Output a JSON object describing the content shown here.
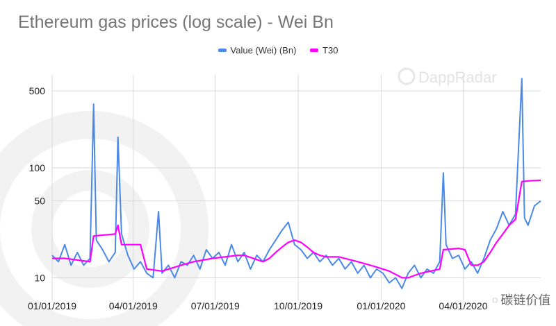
{
  "chart_data": {
    "type": "line",
    "title": "Ethereum gas prices (log scale) - Wei Bn",
    "xlabel": "",
    "ylabel": "",
    "y_scale": "log",
    "ylim": [
      7,
      700
    ],
    "xlim": [
      "2019-01-01",
      "2020-06-26"
    ],
    "yticks": [
      10,
      50,
      100,
      500
    ],
    "xticks": [
      "01/01/2019",
      "04/01/2019",
      "07/01/2019",
      "10/01/2019",
      "01/01/2020",
      "04/01/2020"
    ],
    "xtick_dates": [
      "2019-01-01",
      "2019-04-01",
      "2019-07-01",
      "2019-10-01",
      "2020-01-01",
      "2020-04-01"
    ],
    "grid": true,
    "legend_position": "top",
    "series": [
      {
        "name": "Value (Wei) (Bn)",
        "color": "#4a89e6",
        "data": [
          [
            "2019-01-01",
            16
          ],
          [
            "2019-01-08",
            14
          ],
          [
            "2019-01-15",
            20
          ],
          [
            "2019-01-22",
            13
          ],
          [
            "2019-01-29",
            17
          ],
          [
            "2019-02-05",
            13
          ],
          [
            "2019-02-12",
            15
          ],
          [
            "2019-02-16",
            380
          ],
          [
            "2019-02-19",
            22
          ],
          [
            "2019-02-26",
            18
          ],
          [
            "2019-03-05",
            14
          ],
          [
            "2019-03-12",
            17
          ],
          [
            "2019-03-15",
            190
          ],
          [
            "2019-03-19",
            25
          ],
          [
            "2019-03-26",
            16
          ],
          [
            "2019-04-02",
            12
          ],
          [
            "2019-04-09",
            14
          ],
          [
            "2019-04-16",
            11
          ],
          [
            "2019-04-23",
            10
          ],
          [
            "2019-04-29",
            40
          ],
          [
            "2019-05-03",
            11
          ],
          [
            "2019-05-10",
            13
          ],
          [
            "2019-05-17",
            10
          ],
          [
            "2019-05-24",
            14
          ],
          [
            "2019-05-31",
            13
          ],
          [
            "2019-06-07",
            16
          ],
          [
            "2019-06-14",
            12
          ],
          [
            "2019-06-21",
            18
          ],
          [
            "2019-06-28",
            15
          ],
          [
            "2019-07-05",
            17
          ],
          [
            "2019-07-12",
            13
          ],
          [
            "2019-07-19",
            20
          ],
          [
            "2019-07-26",
            14
          ],
          [
            "2019-08-02",
            17
          ],
          [
            "2019-08-09",
            12
          ],
          [
            "2019-08-16",
            16
          ],
          [
            "2019-08-23",
            14
          ],
          [
            "2019-08-30",
            18
          ],
          [
            "2019-09-06",
            22
          ],
          [
            "2019-09-13",
            27
          ],
          [
            "2019-09-20",
            32
          ],
          [
            "2019-09-27",
            20
          ],
          [
            "2019-10-04",
            18
          ],
          [
            "2019-10-11",
            15
          ],
          [
            "2019-10-18",
            17
          ],
          [
            "2019-10-25",
            14
          ],
          [
            "2019-11-01",
            16
          ],
          [
            "2019-11-08",
            13
          ],
          [
            "2019-11-15",
            15
          ],
          [
            "2019-11-22",
            12
          ],
          [
            "2019-11-29",
            14
          ],
          [
            "2019-12-06",
            11
          ],
          [
            "2019-12-13",
            13
          ],
          [
            "2019-12-20",
            10
          ],
          [
            "2019-12-27",
            12
          ],
          [
            "2020-01-03",
            11
          ],
          [
            "2020-01-10",
            9
          ],
          [
            "2020-01-17",
            10
          ],
          [
            "2020-01-24",
            8
          ],
          [
            "2020-01-31",
            11
          ],
          [
            "2020-02-07",
            13
          ],
          [
            "2020-02-14",
            10
          ],
          [
            "2020-02-21",
            12
          ],
          [
            "2020-02-28",
            11
          ],
          [
            "2020-03-06",
            14
          ],
          [
            "2020-03-10",
            90
          ],
          [
            "2020-03-13",
            20
          ],
          [
            "2020-03-20",
            15
          ],
          [
            "2020-03-27",
            16
          ],
          [
            "2020-04-03",
            12
          ],
          [
            "2020-04-10",
            14
          ],
          [
            "2020-04-17",
            11
          ],
          [
            "2020-04-24",
            15
          ],
          [
            "2020-05-01",
            22
          ],
          [
            "2020-05-08",
            28
          ],
          [
            "2020-05-15",
            40
          ],
          [
            "2020-05-22",
            30
          ],
          [
            "2020-05-29",
            38
          ],
          [
            "2020-06-05",
            650
          ],
          [
            "2020-06-08",
            35
          ],
          [
            "2020-06-12",
            30
          ],
          [
            "2020-06-19",
            45
          ],
          [
            "2020-06-26",
            50
          ]
        ]
      },
      {
        "name": "T30",
        "color": "#ff00ff",
        "data": [
          [
            "2019-01-01",
            15
          ],
          [
            "2019-01-15",
            15
          ],
          [
            "2019-01-29",
            14.5
          ],
          [
            "2019-02-12",
            14
          ],
          [
            "2019-02-16",
            24
          ],
          [
            "2019-03-12",
            25
          ],
          [
            "2019-03-15",
            30
          ],
          [
            "2019-03-19",
            20
          ],
          [
            "2019-04-09",
            20
          ],
          [
            "2019-04-16",
            12
          ],
          [
            "2019-05-03",
            11.5
          ],
          [
            "2019-05-24",
            13
          ],
          [
            "2019-06-07",
            14
          ],
          [
            "2019-06-28",
            15
          ],
          [
            "2019-07-26",
            16
          ],
          [
            "2019-08-02",
            16
          ],
          [
            "2019-08-23",
            14
          ],
          [
            "2019-08-30",
            15
          ],
          [
            "2019-09-06",
            17
          ],
          [
            "2019-09-13",
            19
          ],
          [
            "2019-09-20",
            21
          ],
          [
            "2019-09-27",
            22
          ],
          [
            "2019-10-04",
            21
          ],
          [
            "2019-10-11",
            19
          ],
          [
            "2019-10-18",
            17
          ],
          [
            "2019-10-25",
            16
          ],
          [
            "2019-11-01",
            15.5
          ],
          [
            "2019-11-15",
            15.5
          ],
          [
            "2019-11-29",
            14.5
          ],
          [
            "2019-12-13",
            13.5
          ],
          [
            "2019-12-27",
            12.5
          ],
          [
            "2020-01-10",
            11.5
          ],
          [
            "2020-01-24",
            10
          ],
          [
            "2020-01-31",
            10
          ],
          [
            "2020-02-14",
            11
          ],
          [
            "2020-03-06",
            12
          ],
          [
            "2020-03-10",
            18
          ],
          [
            "2020-03-27",
            18.5
          ],
          [
            "2020-04-03",
            18
          ],
          [
            "2020-04-10",
            13
          ],
          [
            "2020-04-17",
            13
          ],
          [
            "2020-04-24",
            14
          ],
          [
            "2020-05-01",
            17
          ],
          [
            "2020-05-08",
            21
          ],
          [
            "2020-05-15",
            25
          ],
          [
            "2020-05-22",
            30
          ],
          [
            "2020-05-29",
            34
          ],
          [
            "2020-06-05",
            75
          ],
          [
            "2020-06-12",
            76
          ],
          [
            "2020-06-26",
            77
          ]
        ]
      }
    ]
  },
  "watermarks": {
    "brand": "DappRadar",
    "channel": "碳链价值"
  }
}
